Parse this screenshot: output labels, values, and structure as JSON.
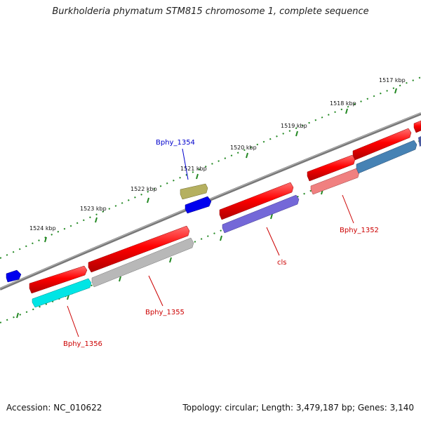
{
  "title": "Burkholderia phymatum STM815 chromosome 1, complete sequence",
  "footer": {
    "accession": "Accession: NC_010622",
    "summary": "Topology: circular; Length: 3,479,187 bp; Genes: 3,140"
  },
  "ticks": [
    "1517 kbp",
    "1518 kbp",
    "1519 kbp",
    "1520 kbp",
    "1521 kbp",
    "1522 kbp",
    "1523 kbp",
    "1524 kbp"
  ],
  "genes": [
    {
      "name": "Bphy_1352",
      "color": "#d00000"
    },
    {
      "name": "cls",
      "color": "#d00000"
    },
    {
      "name": "Bphy_1354",
      "color": "#0000c0"
    },
    {
      "name": "Bphy_1355",
      "color": "#d00000"
    },
    {
      "name": "Bphy_1356",
      "color": "#d00000"
    }
  ],
  "colors": {
    "backbone": "#888888",
    "tick_marks": "#228822",
    "cds_forward": "#ee0000",
    "cds_reverse_a": "#00e0e0",
    "cds_reverse_b": "#aaaaaa",
    "cds_reverse_c": "#6a5acd",
    "cds_reverse_d": "#f08080",
    "cds_reverse_e": "#4682b4",
    "gene_small_a": "#0000ee",
    "gene_small_b": "#b5b060"
  }
}
